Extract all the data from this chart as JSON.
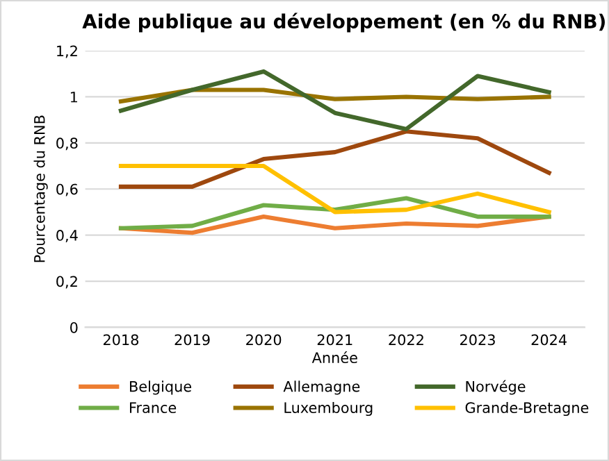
{
  "chart_data": {
    "type": "line",
    "title": "Aide publique au développement (en % du RNB)",
    "xlabel": "Année",
    "ylabel": "Pourcentage du RNB",
    "categories": [
      "2018",
      "2019",
      "2020",
      "2021",
      "2022",
      "2023",
      "2024"
    ],
    "series": [
      {
        "name": "Belgique",
        "color": "#ed7d31",
        "values": [
          0.43,
          0.41,
          0.48,
          0.43,
          0.45,
          0.44,
          0.48
        ]
      },
      {
        "name": "France",
        "color": "#70ad47",
        "values": [
          0.43,
          0.44,
          0.53,
          0.51,
          0.56,
          0.48,
          0.48
        ]
      },
      {
        "name": "Allemagne",
        "color": "#9e480e",
        "values": [
          0.61,
          0.61,
          0.73,
          0.76,
          0.85,
          0.82,
          0.67
        ]
      },
      {
        "name": "Luxembourg",
        "color": "#997300",
        "values": [
          0.98,
          1.03,
          1.03,
          0.99,
          1.0,
          0.99,
          1.0
        ]
      },
      {
        "name": "Norvége",
        "color": "#43682b",
        "values": [
          0.94,
          1.03,
          1.11,
          0.93,
          0.86,
          1.09,
          1.02
        ]
      },
      {
        "name": "Grande-Bretagne",
        "color": "#ffc000",
        "values": [
          0.7,
          0.7,
          0.7,
          0.5,
          0.51,
          0.58,
          0.5
        ]
      }
    ],
    "ylim": [
      0,
      1.2
    ],
    "yticks": [
      0,
      {
        "value": 0.2,
        "label": "0,2"
      },
      {
        "value": 0.4,
        "label": "0,4"
      },
      {
        "value": 0.6,
        "label": "0,6"
      },
      {
        "value": 0.8,
        "label": "0,8"
      },
      1,
      {
        "value": 1.2,
        "label": "1,2"
      }
    ],
    "grid": "y",
    "legend": "bottom",
    "marker": "none",
    "line_style": "solid"
  }
}
